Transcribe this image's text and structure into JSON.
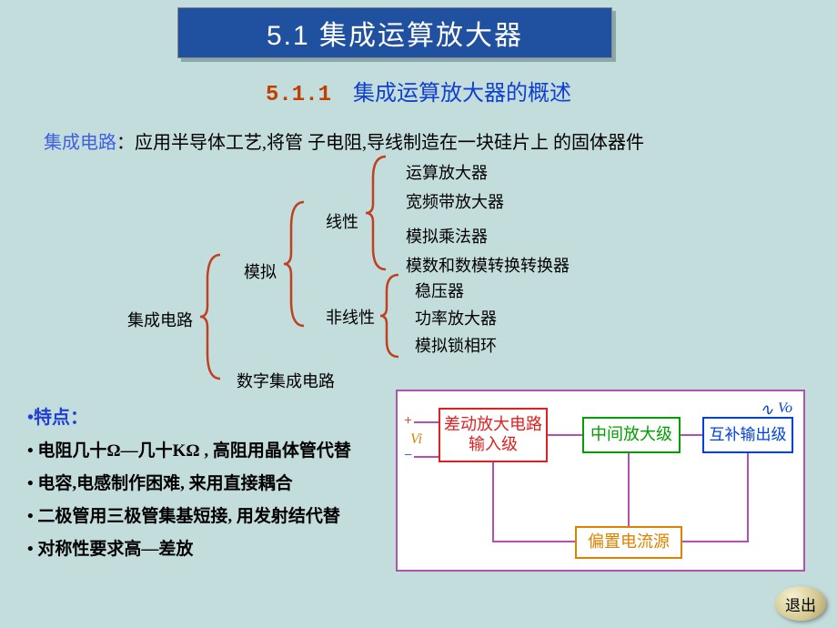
{
  "title": "5.1  集成运算放大器",
  "subtitle": {
    "num": "5.1.1",
    "text": "集成运算放大器的概述"
  },
  "definition": {
    "key": "集成电路",
    "body": "：应用半导体工艺,将管 子电阻,导线制造在一块硅片上 的固体器件"
  },
  "tree": {
    "root": "集成电路",
    "analog": "模拟",
    "digital": "数字集成电路",
    "linear": "线性",
    "nonlinear": "非线性",
    "linear_items": [
      "运算放大器",
      "宽频带放大器",
      "模拟乘法器",
      "模数和数模转换转换器"
    ],
    "nonlinear_items": [
      "稳压器",
      "功率放大器",
      "模拟锁相环"
    ],
    "brace_color": "#c04020"
  },
  "features": {
    "head": "•特点：",
    "items": [
      "• 电阻几十Ω—几十KΩ , 高阻用晶体管代替",
      "• 电容,电感制作困难,  来用直接耦合",
      "• 二极管用三极管集基短接,  用发射结代替",
      "•  对称性要求高—差放"
    ]
  },
  "block": {
    "stage1": "差动放大电路\n输入级",
    "stage2": "中间放大级",
    "stage3": "互补输出级",
    "bias": "偏置电流源",
    "in_plus": "+",
    "in_minus": "−",
    "vi": "Vi",
    "vo": "Vo",
    "sine": "∿",
    "border_color": "#b450b4",
    "colors": {
      "stage1": "#e02020",
      "stage2": "#00a000",
      "stage3": "#0040e0",
      "bias": "#e08000"
    }
  },
  "exit": "退出"
}
